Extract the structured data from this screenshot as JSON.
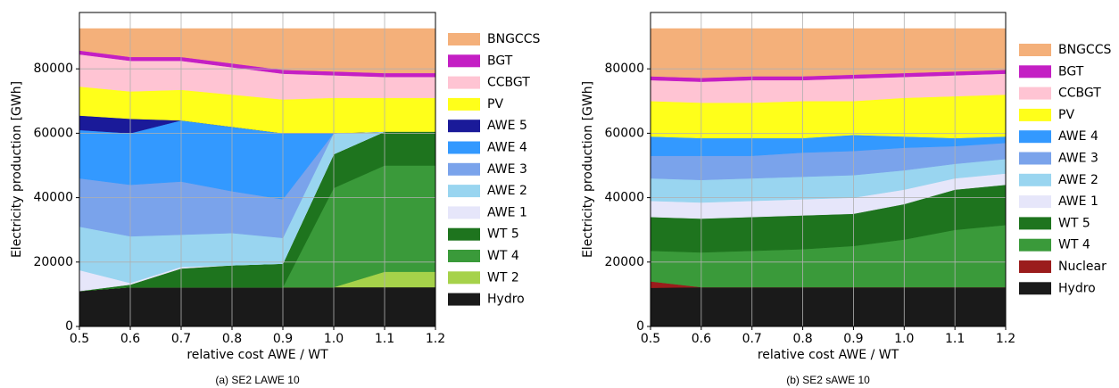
{
  "chart_data": [
    {
      "type": "stacked-area",
      "caption": "(a) SE2 LAWE 10",
      "x_label": "relative cost AWE / WT",
      "y_label": "Electricity production [GWh]",
      "x": [
        0.5,
        0.6,
        0.7,
        0.8,
        0.9,
        1.0,
        1.1,
        1.2
      ],
      "xlim": [
        0.5,
        1.2
      ],
      "ylim": [
        0,
        97500
      ],
      "xticks": [
        0.5,
        0.6,
        0.7,
        0.8,
        0.9,
        {
          "value": 1.0,
          "label": "1.0"
        },
        1.1,
        1.2
      ],
      "yticks": [
        0,
        20000,
        40000,
        60000,
        80000
      ],
      "grid": true,
      "series": [
        {
          "name": "BNGCCS",
          "color": "#f4b07a",
          "values": [
            6800,
            8800,
            8800,
            10800,
            12800,
            13300,
            13800,
            13800
          ]
        },
        {
          "name": "BGT",
          "color": "#c41fc4",
          "values": [
            1200,
            1200,
            1200,
            1200,
            1200,
            1200,
            1200,
            1200
          ]
        },
        {
          "name": "CCBGT",
          "color": "#ffc4d3",
          "values": [
            10000,
            9500,
            9000,
            8500,
            8000,
            7000,
            6500,
            6500
          ]
        },
        {
          "name": "PV",
          "color": "#ffff1a",
          "values": [
            9000,
            8500,
            9500,
            10000,
            10500,
            11000,
            10500,
            10500
          ]
        },
        {
          "name": "AWE 5",
          "color": "#1a1a99",
          "values": [
            4500,
            4500,
            0,
            0,
            0,
            0,
            0,
            0
          ]
        },
        {
          "name": "AWE 4",
          "color": "#3399ff",
          "values": [
            15000,
            16000,
            19000,
            20000,
            20500,
            0,
            0,
            0
          ]
        },
        {
          "name": "AWE 3",
          "color": "#7aa3eb",
          "values": [
            15000,
            16000,
            16500,
            13000,
            12000,
            0,
            0,
            0
          ]
        },
        {
          "name": "AWE 2",
          "color": "#99d5f0",
          "values": [
            13500,
            14500,
            10000,
            10000,
            8000,
            6500,
            0,
            0
          ]
        },
        {
          "name": "AWE 1",
          "color": "#e6e6fa",
          "values": [
            6500,
            500,
            500,
            0,
            0,
            0,
            0,
            0
          ]
        },
        {
          "name": "WT 5",
          "color": "#1e741e",
          "values": [
            0,
            800,
            5800,
            6800,
            7300,
            10500,
            10500,
            10500
          ]
        },
        {
          "name": "WT 4",
          "color": "#3a9a3a",
          "values": [
            0,
            0,
            0,
            0,
            0,
            30800,
            33000,
            33000
          ]
        },
        {
          "name": "WT 2",
          "color": "#a6d24a",
          "values": [
            0,
            0,
            0,
            0,
            0,
            0,
            4800,
            4800
          ]
        },
        {
          "name": "Hydro",
          "color": "#1a1a1a",
          "values": [
            11000,
            12200,
            12200,
            12200,
            12200,
            12200,
            12200,
            12200
          ]
        }
      ]
    },
    {
      "type": "stacked-area",
      "caption": "(b) SE2 sAWE 10",
      "x_label": "relative cost AWE / WT",
      "y_label": "Electricity production [GWh]",
      "x": [
        0.5,
        0.6,
        0.7,
        0.8,
        0.9,
        1.0,
        1.1,
        1.2
      ],
      "xlim": [
        0.5,
        1.2
      ],
      "ylim": [
        0,
        97500
      ],
      "xticks": [
        0.5,
        0.6,
        0.7,
        0.8,
        0.9,
        {
          "value": 1.0,
          "label": "1.0"
        },
        1.1,
        1.2
      ],
      "yticks": [
        0,
        20000,
        40000,
        60000,
        80000
      ],
      "grid": true,
      "series": [
        {
          "name": "BNGCCS",
          "color": "#f4b07a",
          "values": [
            14800,
            15300,
            14800,
            14800,
            14300,
            13800,
            13300,
            12800
          ]
        },
        {
          "name": "BGT",
          "color": "#c41fc4",
          "values": [
            1200,
            1200,
            1200,
            1200,
            1200,
            1200,
            1200,
            1200
          ]
        },
        {
          "name": "CCBGT",
          "color": "#ffc4d3",
          "values": [
            6500,
            6500,
            7000,
            6500,
            7000,
            6500,
            6500,
            6500
          ]
        },
        {
          "name": "PV",
          "color": "#ffff1a",
          "values": [
            11000,
            11000,
            11000,
            11500,
            10500,
            12000,
            13000,
            13000
          ]
        },
        {
          "name": "AWE 4",
          "color": "#3399ff",
          "values": [
            6000,
            5500,
            5500,
            4500,
            5000,
            3500,
            2500,
            2000
          ]
        },
        {
          "name": "AWE 3",
          "color": "#7aa3eb",
          "values": [
            7000,
            7500,
            7000,
            7500,
            7500,
            7000,
            5500,
            5000
          ]
        },
        {
          "name": "AWE 2",
          "color": "#99d5f0",
          "values": [
            7000,
            7000,
            7000,
            7000,
            7000,
            6000,
            4500,
            4500
          ]
        },
        {
          "name": "AWE 1",
          "color": "#e6e6fa",
          "values": [
            5000,
            5000,
            5000,
            5000,
            5000,
            4500,
            3500,
            3500
          ]
        },
        {
          "name": "WT 5",
          "color": "#1e741e",
          "values": [
            10500,
            10500,
            10500,
            10500,
            10000,
            11000,
            12500,
            12500
          ]
        },
        {
          "name": "WT 4",
          "color": "#3a9a3a",
          "values": [
            9500,
            10800,
            11300,
            11800,
            12800,
            14800,
            17800,
            19300
          ]
        },
        {
          "name": "Nuclear",
          "color": "#9b1c1c",
          "values": [
            2000,
            0,
            0,
            0,
            0,
            0,
            0,
            0
          ]
        },
        {
          "name": "Hydro",
          "color": "#1a1a1a",
          "values": [
            12000,
            12200,
            12200,
            12200,
            12200,
            12200,
            12200,
            12200
          ]
        }
      ]
    }
  ]
}
